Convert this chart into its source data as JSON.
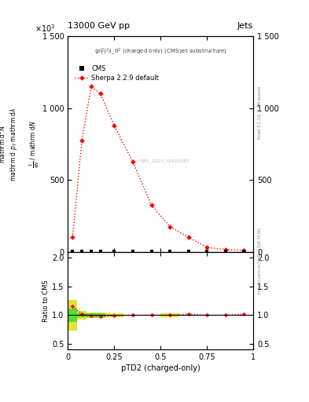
{
  "title_left": "13000 GeV pp",
  "title_right": "Jets",
  "annotation_line1": "(p_{T}^{D})^{2}\\lambda_0^{2} (charged only) (CMS jet substructure)",
  "watermark": "CMS_2021_I1920187",
  "rivet_label": "Rivet 3.1.10, 2.7M events",
  "arxiv_label": "mcplots.cern.ch [arXiv:1306.3436]",
  "xlabel": "pTD2 (charged-only)",
  "ylabel_ratio": "Ratio to CMS",
  "sherpa_x": [
    0.025,
    0.075,
    0.125,
    0.175,
    0.25,
    0.35,
    0.45,
    0.55,
    0.65,
    0.75,
    0.85,
    0.95
  ],
  "sherpa_y": [
    100,
    775,
    1150,
    1100,
    875,
    625,
    325,
    175,
    100,
    30,
    15,
    10
  ],
  "cms_x": [
    0.025,
    0.075,
    0.125,
    0.175,
    0.25,
    0.35,
    0.45,
    0.55,
    0.65,
    0.75,
    0.85,
    0.95
  ],
  "cms_y": [
    3,
    3,
    3,
    3,
    3,
    3,
    3,
    3,
    3,
    3,
    3,
    3
  ],
  "ylim_main": [
    0,
    1500
  ],
  "ylim_ratio": [
    0.4,
    2.1
  ],
  "xlim": [
    0,
    1.0
  ],
  "ratio_sherpa_x": [
    0.025,
    0.075,
    0.125,
    0.175,
    0.25,
    0.35,
    0.45,
    0.55,
    0.65,
    0.75,
    0.85,
    0.95
  ],
  "ratio_sherpa_y": [
    1.15,
    1.02,
    0.99,
    0.98,
    0.99,
    1.0,
    1.0,
    1.0,
    1.02,
    1.0,
    1.0,
    1.02
  ],
  "bin_edges": [
    0.0,
    0.05,
    0.1,
    0.15,
    0.2,
    0.3,
    0.4,
    0.5,
    0.6,
    0.7,
    0.8,
    0.9,
    1.0
  ],
  "ratio_green_lo": [
    0.88,
    0.97,
    0.97,
    0.97,
    0.99,
    0.995,
    0.998,
    0.99,
    0.995,
    0.995,
    0.998,
    0.998
  ],
  "ratio_green_hi": [
    1.12,
    1.03,
    1.03,
    1.03,
    1.01,
    1.005,
    1.002,
    1.01,
    1.005,
    1.005,
    1.002,
    1.002
  ],
  "ratio_yellow_lo": [
    0.73,
    0.92,
    0.95,
    0.95,
    0.97,
    0.99,
    0.996,
    0.97,
    0.99,
    0.99,
    0.996,
    0.996
  ],
  "ratio_yellow_hi": [
    1.27,
    1.08,
    1.05,
    1.05,
    1.03,
    1.01,
    1.004,
    1.03,
    1.01,
    1.01,
    1.004,
    1.004
  ],
  "color_sherpa": "#ff0000",
  "color_cms": "#000000",
  "color_green": "#33dd33",
  "color_yellow": "#dddd00",
  "yticks_main": [
    0,
    500,
    1000,
    1500
  ],
  "ytick_labels_main": [
    "0",
    "500",
    "1 000",
    "1 500"
  ],
  "yticks_ratio": [
    0.5,
    1.0,
    1.5,
    2.0
  ],
  "xticks": [
    0.0,
    0.25,
    0.5,
    0.75,
    1.0
  ],
  "xtick_labels": [
    "0",
    "0.25",
    "0.5",
    "0.75",
    "1"
  ]
}
